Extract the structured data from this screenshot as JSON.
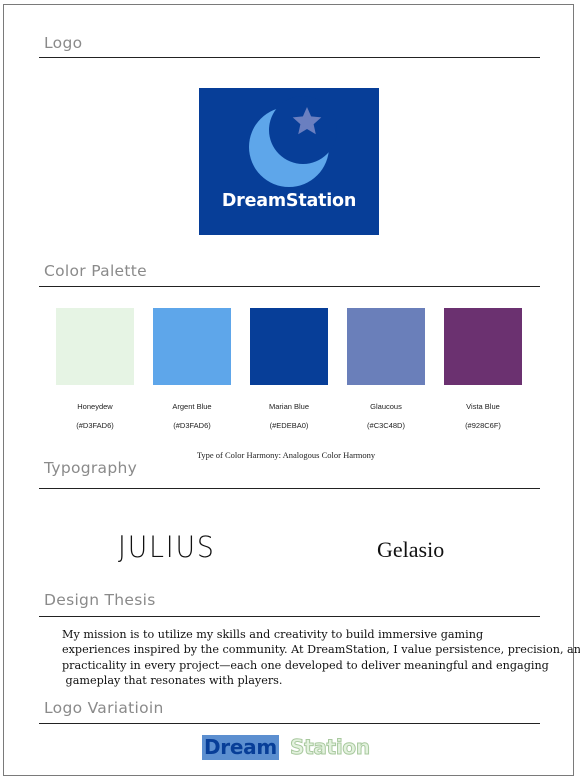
{
  "sections": {
    "logo": "Logo",
    "palette": "Color Palette",
    "typography": "Typography",
    "thesis": "Design Thesis",
    "variation": "Logo Variatioin"
  },
  "logo": {
    "text": "DreamStation",
    "background": "#073e98",
    "moon_color": "#5ea6ea",
    "star_color": "#6a7fc0",
    "icons": [
      "crescent-moon-icon",
      "star-icon"
    ]
  },
  "palette": {
    "swatches": [
      {
        "name": "Honeydew",
        "hex": "(#D3FAD6)",
        "color": "#e6f4e4"
      },
      {
        "name": "Argent Blue",
        "hex": "(#D3FAD6)",
        "color": "#5ea6ea"
      },
      {
        "name": "Marian Blue",
        "hex": "(#EDEBA0)",
        "color": "#073e98"
      },
      {
        "name": "Glaucous",
        "hex": "(#C3C48D)",
        "color": "#6a7fba"
      },
      {
        "name": "Vista Blue",
        "hex": "(#928C6F)",
        "color": "#6b3170"
      }
    ],
    "harmony": "Type of Color Harmony: Analogous Color Harmony"
  },
  "typography": {
    "font1": "JULIUS",
    "font2": "Gelasio"
  },
  "thesis": {
    "lines": [
      "My mission is to utilize my skills and creativity to build immersive gaming",
      "experiences inspired by the community. At DreamStation, I value persistence, precision, and",
      "practicality in every project—each one developed to deliver meaningful and engaging",
      " gameplay that resonates with players."
    ]
  },
  "variation": {
    "part1": "Dream",
    "part2": "Station"
  }
}
